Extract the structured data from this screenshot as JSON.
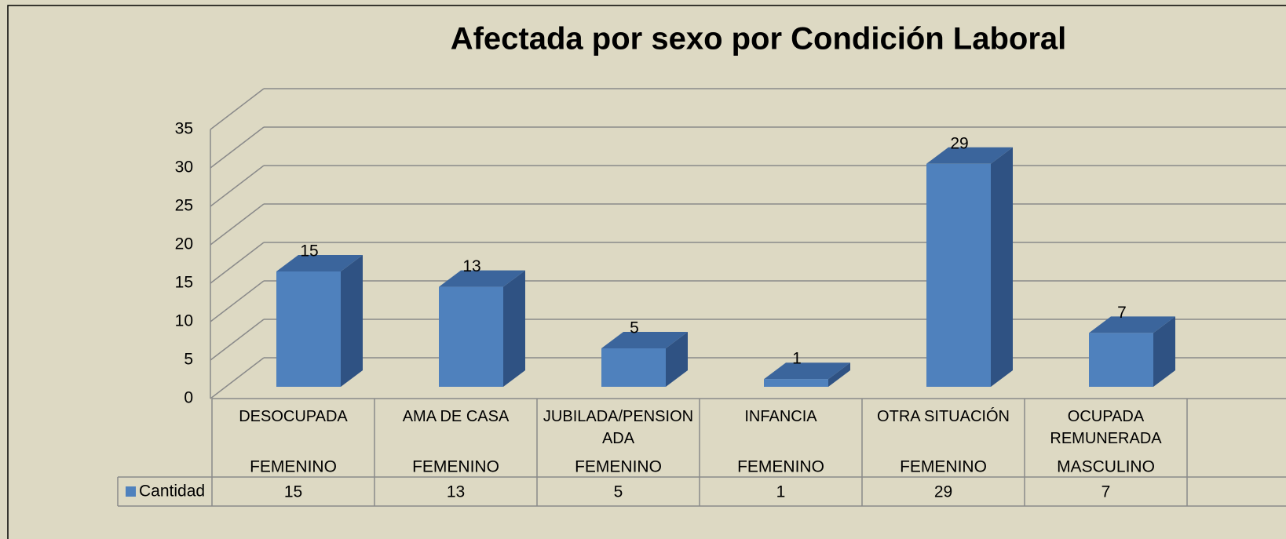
{
  "chart_data": {
    "type": "bar3d",
    "title": "Afectada por sexo por Condición Laboral",
    "categories": [
      "DESOCUPADA",
      "AMA DE CASA",
      "JUBILADA/PENSIONADA",
      "INFANCIA",
      "OTRA SITUACIÓN",
      "OCUPADA REMUNERADA"
    ],
    "subcategories": [
      "FEMENINO",
      "FEMENINO",
      "FEMENINO",
      "FEMENINO",
      "FEMENINO",
      "MASCULINO"
    ],
    "series": [
      {
        "name": "Cantidad",
        "color": "#4f81bd",
        "values": [
          15,
          13,
          5,
          1,
          29,
          7
        ]
      }
    ],
    "ylim": [
      0,
      35
    ],
    "yticks": [
      0,
      5,
      10,
      15,
      20,
      25,
      30,
      35
    ],
    "grid": true,
    "legend": "data-table"
  }
}
